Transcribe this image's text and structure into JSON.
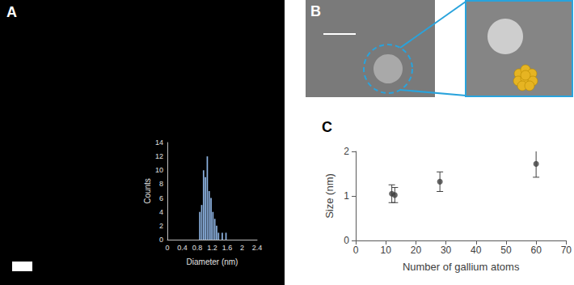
{
  "panel_labels": [
    "A",
    "B",
    "C"
  ],
  "chart_data": [
    {
      "type": "histogram",
      "xlabel": "Diameter (nm)",
      "ylabel": "Counts",
      "bins": [
        0.85,
        0.9,
        0.95,
        1.0,
        1.05,
        1.1,
        1.15,
        1.2,
        1.25,
        1.3,
        1.35,
        1.4,
        1.45,
        1.5,
        1.55,
        1.6,
        1.65
      ],
      "counts": [
        4,
        5,
        10,
        9,
        12,
        7,
        6,
        4,
        3,
        2,
        1,
        0,
        1,
        0,
        1,
        0
      ],
      "color": "#8db3e2",
      "xlim": [
        0,
        2.4
      ],
      "xticks": [
        0,
        0.4,
        0.8,
        1.2,
        1.6,
        2,
        2.4
      ],
      "ylim": [
        0,
        14
      ],
      "yticks": [
        0,
        2,
        4,
        6,
        8,
        10,
        12,
        14
      ],
      "grid": false
    },
    {
      "type": "scatter",
      "xlabel": "Number of gallium atoms",
      "ylabel": "Size (nm)",
      "x": [
        12,
        13,
        28,
        60
      ],
      "values": [
        1.05,
        1.02,
        1.32,
        1.72
      ],
      "errors": [
        0.2,
        0.17,
        0.22,
        0.3
      ],
      "color": "#404040",
      "xlim": [
        0,
        70
      ],
      "xticks": [
        0,
        10,
        20,
        30,
        40,
        50,
        60,
        70
      ],
      "ylim": [
        0,
        2
      ],
      "yticks": [
        0,
        1,
        2
      ],
      "grid": false
    }
  ]
}
